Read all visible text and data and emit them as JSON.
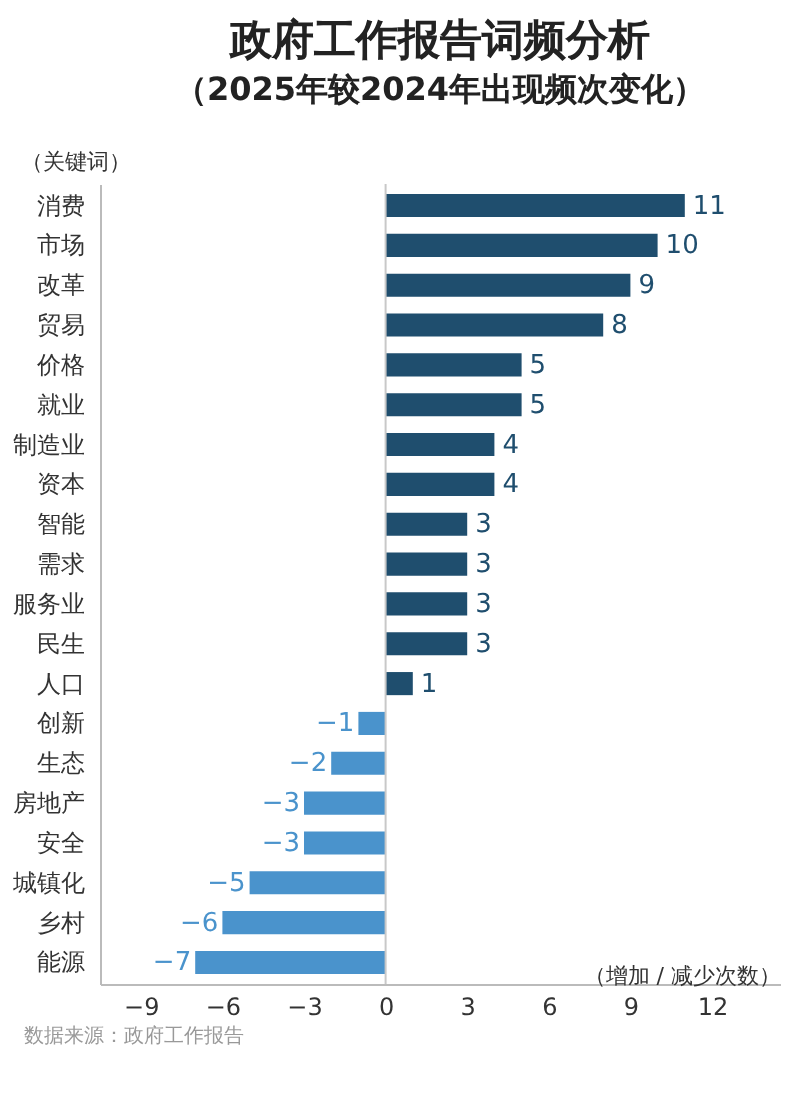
{
  "chart_data": {
    "type": "bar",
    "orientation": "horizontal",
    "title": "政府工作报告词频分析",
    "subtitle": "（2025年较2024年出现频次变化）",
    "ylabel": "（关键词）",
    "xlabel": "（增加 / 减少次数）",
    "categories": [
      "消费",
      "市场",
      "改革",
      "贸易",
      "价格",
      "就业",
      "制造业",
      "资本",
      "智能",
      "需求",
      "服务业",
      "民生",
      "人口",
      "创新",
      "生态",
      "房地产",
      "安全",
      "城镇化",
      "乡村",
      "能源"
    ],
    "values": [
      11,
      10,
      9,
      8,
      5,
      5,
      4,
      4,
      3,
      3,
      3,
      3,
      1,
      -1,
      -2,
      -3,
      -3,
      -5,
      -6,
      -7
    ],
    "colors": [
      "#1f4e6e",
      "#1f4e6e",
      "#1f4e6e",
      "#1f4e6e",
      "#1f4e6e",
      "#1f4e6e",
      "#1f4e6e",
      "#1f4e6e",
      "#1f4e6e",
      "#1f4e6e",
      "#1f4e6e",
      "#1f4e6e",
      "#1f4e6e",
      "#4a93cc",
      "#4a93cc",
      "#4a93cc",
      "#4a93cc",
      "#4a93cc",
      "#4a93cc",
      "#4a93cc"
    ],
    "xlim": [
      -10.5,
      14.5
    ],
    "xticks": [
      -9,
      -6,
      -3,
      0,
      3,
      6,
      9,
      12
    ],
    "data_labels": true,
    "ref_lines": [
      {
        "axis": "x",
        "value": 0,
        "color": "#c8c8c8"
      }
    ],
    "annotations": [
      "数据来源：政府工作报告"
    ]
  }
}
